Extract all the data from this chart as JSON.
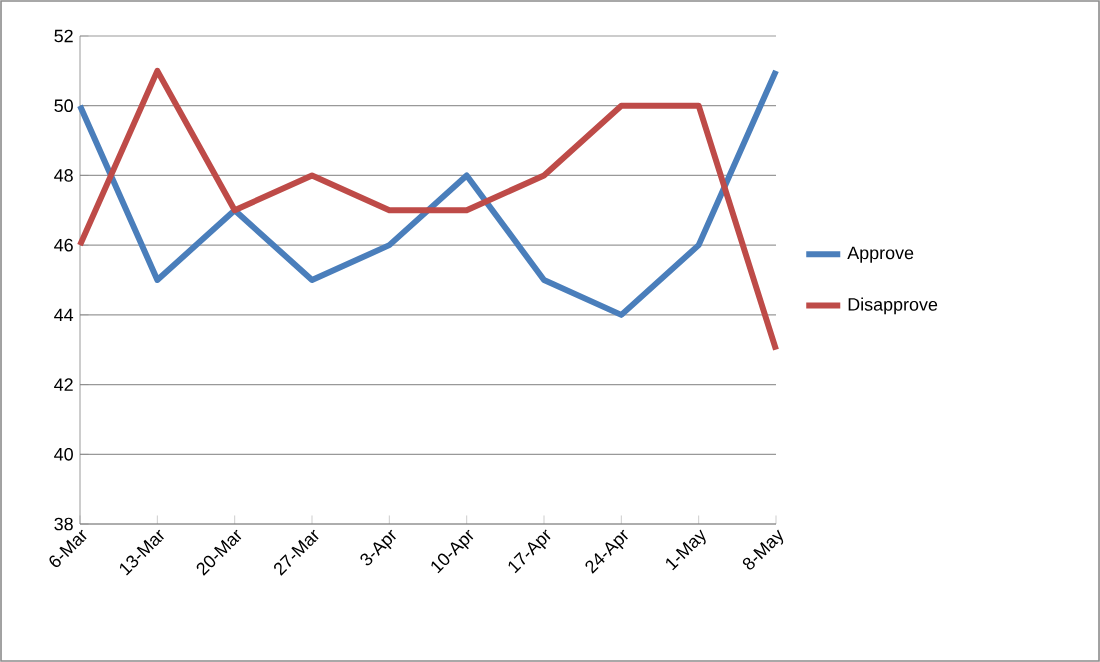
{
  "chart_data": {
    "type": "line",
    "categories": [
      "6-Mar",
      "13-Mar",
      "20-Mar",
      "27-Mar",
      "3-Apr",
      "10-Apr",
      "17-Apr",
      "24-Apr",
      "1-May",
      "8-May"
    ],
    "series": [
      {
        "name": "Approve",
        "color": "#4a7ebb",
        "values": [
          50,
          45,
          47,
          45,
          46,
          48,
          45,
          44,
          46,
          51
        ]
      },
      {
        "name": "Disapprove",
        "color": "#be4b48",
        "values": [
          46,
          51,
          47,
          48,
          47,
          47,
          48,
          50,
          50,
          43
        ]
      }
    ],
    "ylim": [
      38,
      52
    ],
    "yticks": [
      38,
      40,
      42,
      44,
      46,
      48,
      50,
      52
    ],
    "grid": "y",
    "legend": "right",
    "marker": "none",
    "line_style": "solid"
  }
}
